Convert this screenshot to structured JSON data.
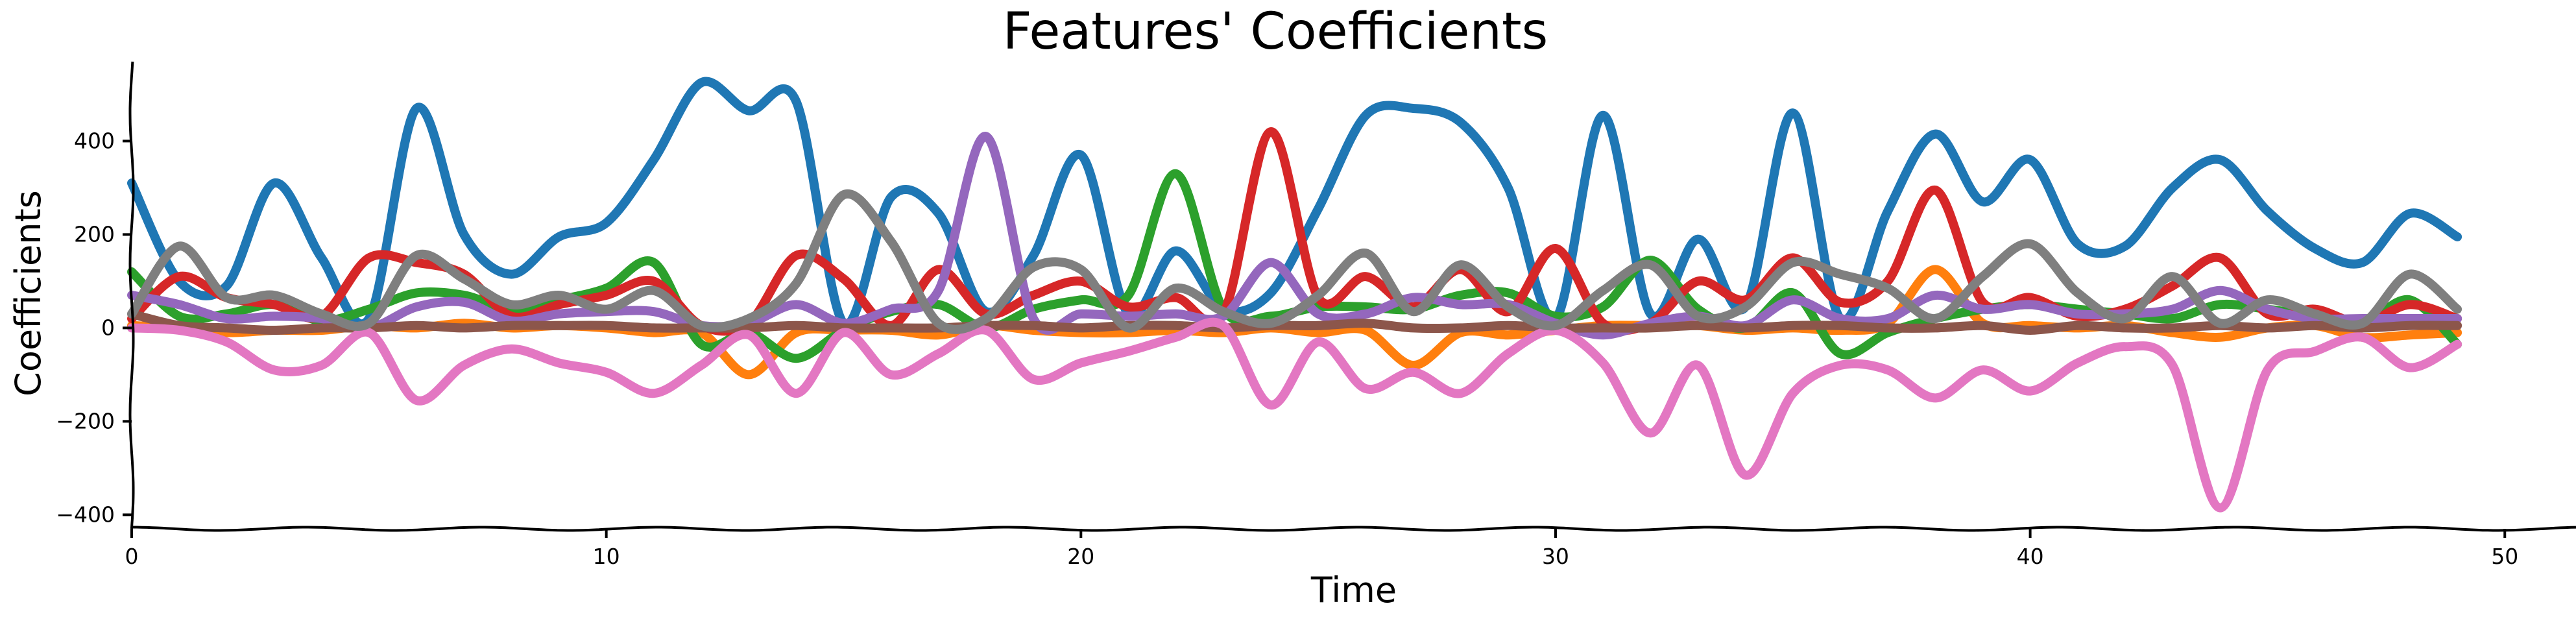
{
  "chart_data": {
    "type": "line",
    "title": "Features' Coefficients",
    "xlabel": "Time",
    "ylabel": "Coefficients",
    "xlim": [
      0,
      51.5
    ],
    "ylim": [
      -430,
      570
    ],
    "xticks": [
      0,
      10,
      20,
      30,
      40,
      50
    ],
    "yticks": [
      -400,
      -200,
      0,
      200,
      400
    ],
    "xtick_labels": [
      "0",
      "10",
      "20",
      "30",
      "40",
      "50"
    ],
    "ytick_labels": [
      "−400",
      "−200",
      "0",
      "200",
      "400"
    ],
    "legend": "none",
    "grid": false,
    "series": [
      {
        "color": "#1f77b4",
        "x": [
          0,
          1,
          2,
          3,
          4,
          5,
          6,
          7,
          8,
          9,
          10,
          11,
          12,
          13,
          14,
          15,
          16,
          17,
          18,
          19,
          20,
          21,
          22,
          23,
          24,
          25,
          26,
          27,
          28,
          29,
          30,
          31,
          32,
          33,
          34,
          35,
          36,
          37,
          38,
          39,
          40,
          41,
          42,
          43,
          44,
          45,
          46,
          47,
          48,
          49
        ],
        "values": [
          310,
          100,
          90,
          310,
          150,
          20,
          470,
          200,
          115,
          195,
          225,
          360,
          525,
          465,
          485,
          10,
          280,
          245,
          35,
          155,
          370,
          30,
          165,
          40,
          75,
          255,
          455,
          470,
          440,
          300,
          20,
          455,
          30,
          190,
          45,
          460,
          20,
          250,
          415,
          270,
          360,
          180,
          175,
          300,
          360,
          250,
          170,
          140,
          245,
          195
        ]
      },
      {
        "color": "#ff7f0e",
        "x": [
          0,
          1,
          2,
          3,
          4,
          5,
          6,
          7,
          8,
          9,
          10,
          11,
          12,
          13,
          14,
          15,
          16,
          17,
          18,
          19,
          20,
          21,
          22,
          23,
          24,
          25,
          26,
          27,
          28,
          29,
          30,
          31,
          32,
          33,
          34,
          35,
          36,
          37,
          38,
          39,
          40,
          41,
          42,
          43,
          44,
          45,
          46,
          47,
          48,
          49
        ],
        "values": [
          5,
          0,
          -10,
          -5,
          -5,
          5,
          0,
          10,
          0,
          5,
          0,
          -10,
          -10,
          -100,
          -10,
          -5,
          -5,
          -15,
          5,
          -5,
          -10,
          -10,
          -5,
          -10,
          0,
          -10,
          -5,
          -80,
          -10,
          -15,
          -5,
          5,
          5,
          5,
          -5,
          0,
          -5,
          10,
          125,
          10,
          5,
          0,
          5,
          -10,
          -20,
          0,
          5,
          -20,
          -15,
          -10
        ]
      },
      {
        "color": "#2ca02c",
        "x": [
          0,
          1,
          2,
          3,
          4,
          5,
          6,
          7,
          8,
          9,
          10,
          11,
          12,
          13,
          14,
          15,
          16,
          17,
          18,
          19,
          20,
          21,
          22,
          23,
          24,
          25,
          26,
          27,
          28,
          29,
          30,
          31,
          32,
          33,
          34,
          35,
          36,
          37,
          38,
          39,
          40,
          41,
          42,
          43,
          44,
          45,
          46,
          47,
          48,
          49
        ],
        "values": [
          120,
          25,
          30,
          50,
          15,
          40,
          75,
          70,
          40,
          60,
          85,
          140,
          -35,
          -10,
          -65,
          -5,
          35,
          50,
          0,
          40,
          60,
          70,
          330,
          40,
          25,
          45,
          45,
          40,
          70,
          75,
          25,
          45,
          145,
          40,
          0,
          75,
          -55,
          -10,
          20,
          40,
          50,
          40,
          30,
          20,
          50,
          40,
          25,
          10,
          60,
          -35
        ]
      },
      {
        "color": "#d62728",
        "x": [
          0,
          1,
          2,
          3,
          4,
          5,
          6,
          7,
          8,
          9,
          10,
          11,
          12,
          13,
          14,
          15,
          16,
          17,
          18,
          19,
          20,
          21,
          22,
          23,
          24,
          25,
          26,
          27,
          28,
          29,
          30,
          31,
          32,
          33,
          34,
          35,
          36,
          37,
          38,
          39,
          40,
          41,
          42,
          43,
          44,
          45,
          46,
          47,
          48,
          49
        ],
        "values": [
          20,
          110,
          65,
          50,
          25,
          150,
          140,
          115,
          25,
          50,
          70,
          100,
          5,
          10,
          155,
          105,
          5,
          125,
          30,
          70,
          100,
          45,
          65,
          30,
          420,
          65,
          110,
          45,
          125,
          35,
          170,
          10,
          10,
          100,
          60,
          150,
          55,
          100,
          295,
          55,
          65,
          25,
          40,
          90,
          150,
          30,
          40,
          10,
          50,
          20
        ]
      },
      {
        "color": "#9467bd",
        "x": [
          0,
          1,
          2,
          3,
          4,
          5,
          6,
          7,
          8,
          9,
          10,
          11,
          12,
          13,
          14,
          15,
          16,
          17,
          18,
          19,
          20,
          21,
          22,
          23,
          24,
          25,
          26,
          27,
          28,
          29,
          30,
          31,
          32,
          33,
          34,
          35,
          36,
          37,
          38,
          39,
          40,
          41,
          42,
          43,
          44,
          45,
          46,
          47,
          48,
          49
        ],
        "values": [
          70,
          50,
          20,
          25,
          20,
          0,
          45,
          55,
          15,
          30,
          35,
          35,
          5,
          10,
          50,
          10,
          40,
          80,
          410,
          20,
          30,
          25,
          30,
          25,
          140,
          30,
          30,
          65,
          50,
          50,
          10,
          -15,
          10,
          25,
          5,
          60,
          20,
          20,
          70,
          40,
          50,
          30,
          30,
          40,
          80,
          40,
          20,
          20,
          20,
          20
        ]
      },
      {
        "color": "#8c564b",
        "x": [
          0,
          1,
          2,
          3,
          4,
          5,
          6,
          7,
          8,
          9,
          10,
          11,
          12,
          13,
          14,
          15,
          16,
          17,
          18,
          19,
          20,
          21,
          22,
          23,
          24,
          25,
          26,
          27,
          28,
          29,
          30,
          31,
          32,
          33,
          34,
          35,
          36,
          37,
          38,
          39,
          40,
          41,
          42,
          43,
          44,
          45,
          46,
          47,
          48,
          49
        ],
        "values": [
          30,
          5,
          0,
          -5,
          0,
          0,
          5,
          0,
          5,
          5,
          5,
          0,
          0,
          0,
          5,
          0,
          0,
          0,
          5,
          5,
          0,
          5,
          5,
          0,
          5,
          5,
          10,
          0,
          0,
          5,
          0,
          0,
          0,
          5,
          0,
          5,
          5,
          0,
          0,
          5,
          -5,
          5,
          0,
          0,
          5,
          0,
          5,
          0,
          5,
          5
        ]
      },
      {
        "color": "#e377c2",
        "x": [
          0,
          1,
          2,
          3,
          4,
          5,
          6,
          7,
          8,
          9,
          10,
          11,
          12,
          13,
          14,
          15,
          16,
          17,
          18,
          19,
          20,
          21,
          22,
          23,
          24,
          25,
          26,
          27,
          28,
          29,
          30,
          31,
          32,
          33,
          34,
          35,
          36,
          37,
          38,
          39,
          40,
          41,
          42,
          43,
          44,
          45,
          46,
          47,
          48,
          49
        ],
        "values": [
          0,
          -5,
          -30,
          -90,
          -80,
          -10,
          -155,
          -80,
          -45,
          -75,
          -95,
          -140,
          -80,
          -15,
          -140,
          -10,
          -100,
          -55,
          -5,
          -110,
          -75,
          -50,
          -20,
          5,
          -165,
          -30,
          -130,
          -95,
          -140,
          -55,
          -5,
          -75,
          -225,
          -80,
          -315,
          -140,
          -80,
          -90,
          -150,
          -90,
          -135,
          -75,
          -40,
          -80,
          -385,
          -90,
          -50,
          -20,
          -85,
          -35
        ]
      },
      {
        "color": "#7f7f7f",
        "x": [
          0,
          1,
          2,
          3,
          4,
          5,
          6,
          7,
          8,
          9,
          10,
          11,
          12,
          13,
          14,
          15,
          16,
          17,
          18,
          19,
          20,
          21,
          22,
          23,
          24,
          25,
          26,
          27,
          28,
          29,
          30,
          31,
          32,
          33,
          34,
          35,
          36,
          37,
          38,
          39,
          40,
          41,
          42,
          43,
          44,
          45,
          46,
          47,
          48,
          49
        ],
        "values": [
          30,
          175,
          65,
          70,
          30,
          10,
          155,
          105,
          50,
          70,
          40,
          80,
          5,
          20,
          95,
          285,
          185,
          10,
          20,
          130,
          125,
          0,
          85,
          35,
          10,
          70,
          160,
          35,
          135,
          45,
          5,
          80,
          135,
          25,
          45,
          140,
          115,
          85,
          20,
          110,
          180,
          75,
          20,
          110,
          10,
          60,
          30,
          10,
          115,
          40
        ]
      }
    ]
  }
}
